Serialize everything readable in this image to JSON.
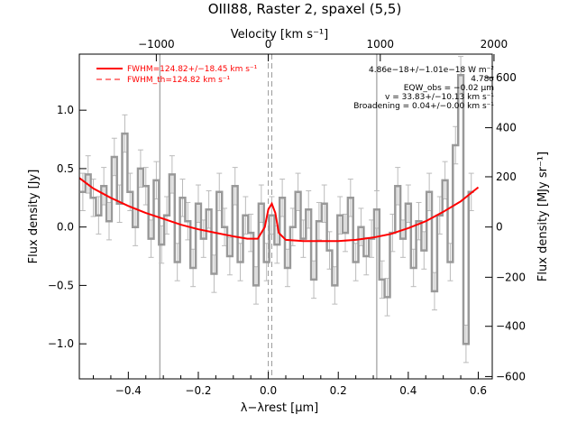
{
  "chart_data": {
    "type": "line",
    "title": "OIII88, Raster 2, spaxel (5,5)",
    "xlabel": "λ−λrest [μm]",
    "ylabel": "Flux density [Jy]",
    "x2label": "Velocity [km s⁻¹]",
    "y2label": "Flux density [MJy sr⁻¹]",
    "xlim": [
      -0.54,
      0.64
    ],
    "ylim": [
      -1.3,
      1.48
    ],
    "x_ticks": [
      -0.4,
      -0.2,
      0.0,
      0.2,
      0.4,
      0.6
    ],
    "x_tick_labels": [
      "−0.4",
      "−0.2",
      "0.0",
      "0.2",
      "0.4",
      "0.6"
    ],
    "y_ticks": [
      -1.0,
      -0.5,
      0.0,
      0.5,
      1.0
    ],
    "y_tick_labels": [
      "−1.0",
      "−0.5",
      "0.0",
      "0.5",
      "1.0"
    ],
    "top_ticks": [
      {
        "x": -0.32,
        "label": "−1000"
      },
      {
        "x": 0.0,
        "label": "0"
      },
      {
        "x": 0.32,
        "label": "1000"
      },
      {
        "x": 0.645,
        "label": "2000"
      }
    ],
    "right_ticks": [
      {
        "y": 1.28,
        "label": "600"
      },
      {
        "y": 0.85,
        "label": "400"
      },
      {
        "y": 0.43,
        "label": "200"
      },
      {
        "y": 0.0,
        "label": "0"
      },
      {
        "y": -0.43,
        "label": "−200"
      },
      {
        "y": -0.85,
        "label": "−400"
      },
      {
        "y": -1.28,
        "label": "−600"
      }
    ],
    "vlines_solid": [
      -0.31,
      0.31
    ],
    "vlines_dashed": [
      0.0,
      0.01
    ],
    "legend": [
      {
        "label": "FWHM=124.82+/−18.45 km s⁻¹",
        "style": "solid",
        "color": "#ff0000"
      },
      {
        "label": "FWHM_th=124.82 km s⁻¹",
        "style": "dashed",
        "color": "#ff0000"
      }
    ],
    "annotations": [
      "4.86e−18+/−1.01e−18 W m⁻²",
      "4.78σ",
      "EQW_obs = −0.02 μm",
      "v = 33.83+/−10.13 km s⁻¹",
      "Broadening = 0.04+/−0.00 km s⁻¹"
    ],
    "fit": {
      "name": "Fit",
      "color": "#ff0000",
      "x": [
        -0.54,
        -0.5,
        -0.45,
        -0.4,
        -0.35,
        -0.3,
        -0.25,
        -0.2,
        -0.15,
        -0.1,
        -0.06,
        -0.03,
        -0.01,
        0.0,
        0.01,
        0.02,
        0.03,
        0.05,
        0.1,
        0.15,
        0.2,
        0.25,
        0.3,
        0.35,
        0.4,
        0.45,
        0.5,
        0.55,
        0.6
      ],
      "y": [
        0.42,
        0.33,
        0.25,
        0.18,
        0.12,
        0.07,
        0.02,
        -0.02,
        -0.05,
        -0.08,
        -0.1,
        -0.1,
        0.0,
        0.15,
        0.2,
        0.12,
        -0.05,
        -0.11,
        -0.12,
        -0.12,
        -0.12,
        -0.11,
        -0.09,
        -0.06,
        -0.01,
        0.05,
        0.13,
        0.22,
        0.34
      ]
    },
    "data": {
      "name": "Data",
      "color": "#999999",
      "x": [
        -0.53,
        -0.515,
        -0.5,
        -0.485,
        -0.47,
        -0.455,
        -0.44,
        -0.425,
        -0.41,
        -0.395,
        -0.38,
        -0.365,
        -0.35,
        -0.335,
        -0.32,
        -0.305,
        -0.29,
        -0.275,
        -0.26,
        -0.245,
        -0.23,
        -0.215,
        -0.2,
        -0.185,
        -0.17,
        -0.155,
        -0.14,
        -0.125,
        -0.11,
        -0.095,
        -0.08,
        -0.065,
        -0.05,
        -0.035,
        -0.02,
        -0.005,
        0.01,
        0.025,
        0.04,
        0.055,
        0.07,
        0.085,
        0.1,
        0.115,
        0.13,
        0.145,
        0.16,
        0.175,
        0.19,
        0.205,
        0.22,
        0.235,
        0.25,
        0.265,
        0.28,
        0.295,
        0.31,
        0.325,
        0.34,
        0.355,
        0.37,
        0.385,
        0.4,
        0.415,
        0.43,
        0.445,
        0.46,
        0.475,
        0.49,
        0.505,
        0.52,
        0.535,
        0.55,
        0.565,
        0.58
      ],
      "y": [
        0.3,
        0.45,
        0.25,
        0.1,
        0.35,
        0.05,
        0.6,
        0.2,
        0.8,
        0.3,
        0.0,
        0.5,
        0.35,
        -0.1,
        0.4,
        -0.15,
        0.1,
        0.45,
        -0.3,
        0.25,
        0.05,
        -0.35,
        0.2,
        -0.1,
        0.15,
        -0.4,
        0.3,
        0.0,
        -0.25,
        0.35,
        -0.3,
        0.1,
        -0.05,
        -0.5,
        0.2,
        -0.3,
        0.1,
        -0.15,
        0.25,
        -0.35,
        0.0,
        0.3,
        -0.1,
        0.15,
        -0.45,
        0.05,
        0.2,
        -0.2,
        -0.5,
        0.1,
        -0.05,
        0.25,
        -0.3,
        0.0,
        -0.25,
        -0.1,
        0.15,
        -0.45,
        -0.6,
        -0.05,
        0.35,
        -0.1,
        0.2,
        -0.35,
        0.05,
        -0.2,
        0.3,
        -0.55,
        0.1,
        0.4,
        -0.3,
        0.7,
        1.3,
        -1.0,
        0.3
      ],
      "err": 0.16
    }
  }
}
